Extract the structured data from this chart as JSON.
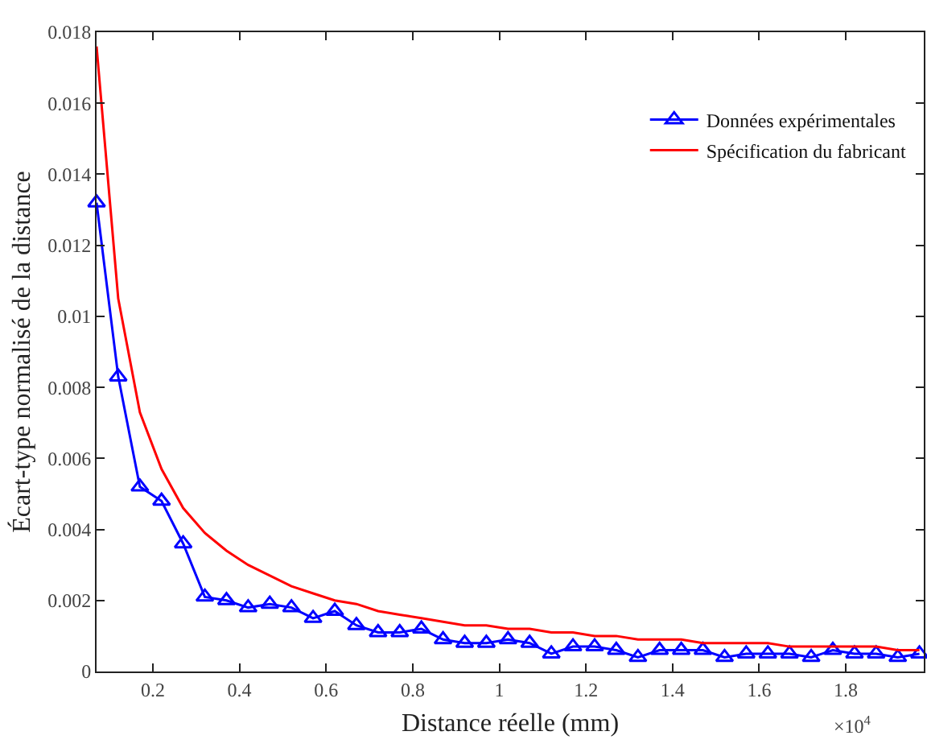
{
  "chart_data": {
    "type": "line",
    "xlabel": "Distance réelle (mm)",
    "ylabel": "Écart-type normalisé de la distance",
    "x": [
      0.07,
      0.12,
      0.17,
      0.22,
      0.27,
      0.32,
      0.37,
      0.42,
      0.47,
      0.52,
      0.57,
      0.62,
      0.67,
      0.72,
      0.77,
      0.82,
      0.87,
      0.92,
      0.97,
      1.02,
      1.07,
      1.12,
      1.17,
      1.22,
      1.27,
      1.32,
      1.37,
      1.42,
      1.47,
      1.52,
      1.57,
      1.62,
      1.67,
      1.72,
      1.77,
      1.82,
      1.87,
      1.92,
      1.97
    ],
    "series": [
      {
        "name": "Données expérimentales",
        "color": "#0000ff",
        "marker": "triangle",
        "values": [
          0.0132,
          0.0083,
          0.0052,
          0.0048,
          0.0036,
          0.0021,
          0.002,
          0.0018,
          0.0019,
          0.0018,
          0.0015,
          0.0017,
          0.0013,
          0.0011,
          0.0011,
          0.0012,
          0.0009,
          0.0008,
          0.0008,
          0.0009,
          0.0008,
          0.0005,
          0.0007,
          0.0007,
          0.0006,
          0.0004,
          0.0006,
          0.0006,
          0.0006,
          0.0004,
          0.0005,
          0.0005,
          0.0005,
          0.0004,
          0.0006,
          0.0005,
          0.0005,
          0.0004,
          0.0005
        ]
      },
      {
        "name": "Spécification du fabricant",
        "color": "#ff0000",
        "marker": "none",
        "values": [
          0.0176,
          0.0105,
          0.0073,
          0.0057,
          0.0046,
          0.0039,
          0.0034,
          0.003,
          0.0027,
          0.0024,
          0.0022,
          0.002,
          0.0019,
          0.0017,
          0.0016,
          0.0015,
          0.0014,
          0.0013,
          0.0013,
          0.0012,
          0.0012,
          0.0011,
          0.0011,
          0.001,
          0.001,
          0.0009,
          0.0009,
          0.0009,
          0.0008,
          0.0008,
          0.0008,
          0.0008,
          0.0007,
          0.0007,
          0.0007,
          0.0007,
          0.0007,
          0.0006,
          0.0006
        ]
      }
    ],
    "xlim": [
      0.07,
      1.98
    ],
    "xticks": [
      0.2,
      0.4,
      0.6,
      0.8,
      1,
      1.2,
      1.4,
      1.6,
      1.8
    ],
    "ylim": [
      0,
      0.018
    ],
    "yticks": [
      0,
      0.002,
      0.004,
      0.006,
      0.008,
      0.01,
      0.012,
      0.014,
      0.016,
      0.018
    ],
    "annotations": [
      "×10$^{4}$"
    ],
    "grid": false,
    "legend": "top right",
    "line_style": "solid"
  }
}
